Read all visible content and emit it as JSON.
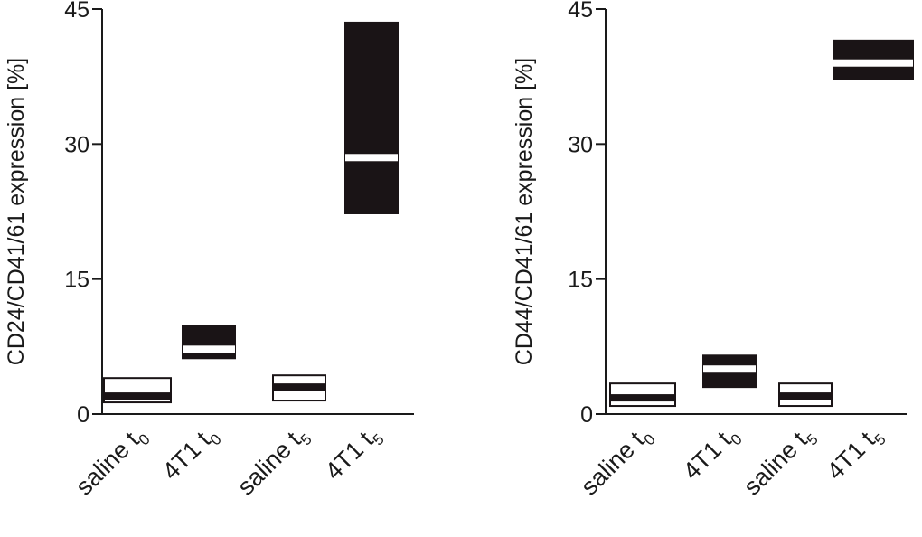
{
  "chart_data": [
    {
      "type": "boxplot",
      "ylabel": "CD24/CD41/61 expression [%]",
      "ylim": [
        0,
        45
      ],
      "yticks": [
        "0",
        "15",
        "30",
        "45"
      ],
      "categories": [
        {
          "name": "saline",
          "sub": "0"
        },
        {
          "name": "4T1",
          "sub": "0"
        },
        {
          "name": "saline",
          "sub": "5"
        },
        {
          "name": "4T1",
          "sub": "5"
        }
      ],
      "boxes": [
        {
          "q1": 1.3,
          "median": 2.0,
          "q3": 4.0,
          "fill": "#ffffff"
        },
        {
          "q1": 6.2,
          "median": 7.2,
          "q3": 9.8,
          "fill": "#1a1416"
        },
        {
          "q1": 1.5,
          "median": 3.0,
          "q3": 4.3,
          "fill": "#ffffff"
        },
        {
          "q1": 22.3,
          "median": 28.5,
          "q3": 43.5,
          "fill": "#1a1416"
        }
      ],
      "grid": false,
      "legend": "none"
    },
    {
      "type": "boxplot",
      "ylabel": "CD44/CD41/61 expression [%]",
      "ylim": [
        0,
        45
      ],
      "yticks": [
        "0",
        "15",
        "30",
        "45"
      ],
      "categories": [
        {
          "name": "saline",
          "sub": "0"
        },
        {
          "name": "4T1",
          "sub": "0"
        },
        {
          "name": "saline",
          "sub": "5"
        },
        {
          "name": "4T1",
          "sub": "5"
        }
      ],
      "boxes": [
        {
          "q1": 0.9,
          "median": 1.8,
          "q3": 3.4,
          "fill": "#ffffff"
        },
        {
          "q1": 3.0,
          "median": 5.0,
          "q3": 6.5,
          "fill": "#1a1416"
        },
        {
          "q1": 0.9,
          "median": 2.0,
          "q3": 3.4,
          "fill": "#ffffff"
        },
        {
          "q1": 37.2,
          "median": 39.0,
          "q3": 41.5,
          "fill": "#1a1416"
        }
      ],
      "grid": false,
      "legend": "none"
    }
  ]
}
